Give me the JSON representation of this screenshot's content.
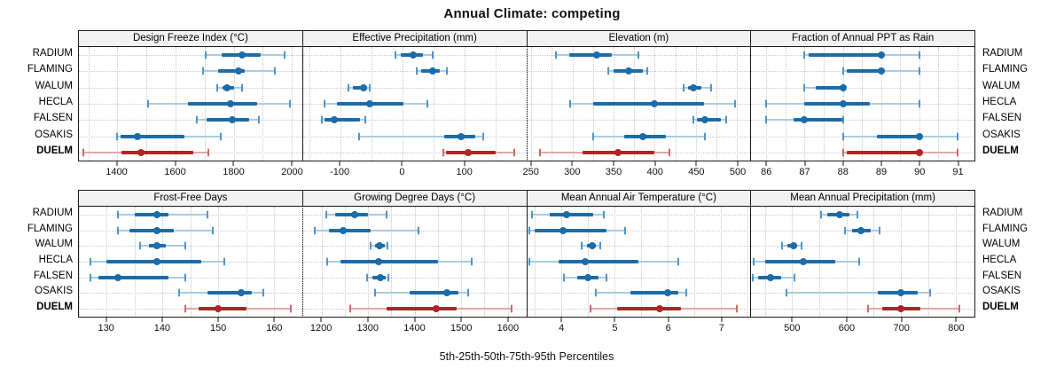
{
  "chart_data": {
    "type": "dotplot-interval",
    "title": "Annual Climate: competing",
    "caption": "5th-25th-50th-75th-95th Percentiles",
    "percentiles": [
      "5th",
      "25th",
      "50th",
      "75th",
      "95th"
    ],
    "sites_top_to_bottom": [
      "RADIUM",
      "FLAMING",
      "WALUM",
      "HECLA",
      "FALSEN",
      "OSAKIS",
      "DUELM"
    ],
    "highlight_site": "DUELM",
    "legend_position": "none",
    "grid": "dotted, major and half-step minor vertical lines, per-row horizontal lines",
    "colors": {
      "series_line": "#1B6CA8",
      "series_light": "#A9CCE3",
      "series_cap": "#5094C5",
      "highlight_line": "#B02425",
      "highlight_light": "#DFA9A9",
      "highlight_cap": "#C86A6A",
      "grid": "#C8C8C8",
      "panel_header_bg": "#F2F2F2",
      "border": "#1A1A1A"
    },
    "panels": [
      {
        "title": "Design Freeze Index (°C)",
        "row": 0,
        "col": 0,
        "xlim": [
          1268,
          2035
        ],
        "ticks": [
          1400,
          1600,
          1800,
          2000
        ],
        "series": [
          {
            "site": "RADIUM",
            "values": [
              1705,
              1757,
              1830,
              1893,
              1975
            ]
          },
          {
            "site": "FLAMING",
            "values": [
              1694,
              1745,
              1815,
              1838,
              1940
            ]
          },
          {
            "site": "WALUM",
            "values": [
              1744,
              1762,
              1778,
              1800,
              1830
            ]
          },
          {
            "site": "HECLA",
            "values": [
              1505,
              1643,
              1790,
              1880,
              1993
            ]
          },
          {
            "site": "FALSEN",
            "values": [
              1672,
              1706,
              1795,
              1853,
              1886
            ]
          },
          {
            "site": "OSAKIS",
            "values": [
              1400,
              1410,
              1470,
              1630,
              1755
            ]
          },
          {
            "site": "DUELM",
            "values": [
              1283,
              1415,
              1482,
              1660,
              1712
            ]
          }
        ]
      },
      {
        "title": "Effective Precipitation (mm)",
        "row": 0,
        "col": 1,
        "xlim": [
          -160,
          200
        ],
        "ticks": [
          -100,
          0,
          100
        ],
        "series": [
          {
            "site": "RADIUM",
            "values": [
              -11,
              -2,
              18,
              34,
              49
            ]
          },
          {
            "site": "FLAMING",
            "values": [
              24,
              30,
              49,
              61,
              72
            ]
          },
          {
            "site": "WALUM",
            "values": [
              -87,
              -80,
              -63,
              -57,
              -52
            ]
          },
          {
            "site": "HECLA",
            "values": [
              -126,
              -105,
              -52,
              2,
              41
            ]
          },
          {
            "site": "FALSEN",
            "values": [
              -130,
              -126,
              -110,
              -68,
              -60
            ]
          },
          {
            "site": "OSAKIS",
            "values": [
              -70,
              68,
              95,
              118,
              131
            ]
          },
          {
            "site": "DUELM",
            "values": [
              66,
              70,
              107,
              150,
              180
            ]
          }
        ]
      },
      {
        "title": "Elevation (m)",
        "row": 0,
        "col": 2,
        "xlim": [
          245,
          516
        ],
        "ticks": [
          250,
          300,
          350,
          400,
          450,
          500
        ],
        "series": [
          {
            "site": "RADIUM",
            "values": [
              280,
              296,
              330,
              348,
              380
            ]
          },
          {
            "site": "FLAMING",
            "values": [
              343,
              350,
              368,
              385,
              391
            ]
          },
          {
            "site": "WALUM",
            "values": [
              435,
              440,
              447,
              456,
              468
            ]
          },
          {
            "site": "HECLA",
            "values": [
              297,
              325,
              400,
              460,
              497
            ]
          },
          {
            "site": "FALSEN",
            "values": [
              447,
              451,
              461,
              480,
              487
            ]
          },
          {
            "site": "OSAKIS",
            "values": [
              325,
              363,
              385,
              413,
              461
            ]
          },
          {
            "site": "DUELM",
            "values": [
              261,
              312,
              355,
              400,
              418
            ]
          }
        ]
      },
      {
        "title": "Fraction of Annual PPT as Rain",
        "row": 0,
        "col": 3,
        "xlim": [
          85.6,
          91.45
        ],
        "ticks": [
          86,
          87,
          88,
          89,
          90,
          91
        ],
        "series": [
          {
            "site": "RADIUM",
            "values": [
              87,
              87.1,
              89,
              89,
              90
            ]
          },
          {
            "site": "FLAMING",
            "values": [
              88,
              88.1,
              89,
              89,
              90
            ]
          },
          {
            "site": "WALUM",
            "values": [
              87,
              87.3,
              88,
              88,
              88
            ]
          },
          {
            "site": "HECLA",
            "values": [
              86,
              87,
              88,
              88.7,
              90
            ]
          },
          {
            "site": "FALSEN",
            "values": [
              86,
              86.7,
              87,
              88,
              88
            ]
          },
          {
            "site": "OSAKIS",
            "values": [
              88,
              88.9,
              90,
              90,
              91
            ]
          },
          {
            "site": "DUELM",
            "values": [
              88,
              88.1,
              90,
              90,
              91
            ]
          }
        ]
      },
      {
        "title": "Frost-Free Days",
        "row": 1,
        "col": 0,
        "xlim": [
          125,
          165
        ],
        "ticks": [
          130,
          140,
          150,
          160
        ],
        "series": [
          {
            "site": "RADIUM",
            "values": [
              132,
              135,
              139,
              141,
              148
            ]
          },
          {
            "site": "FLAMING",
            "values": [
              132,
              134,
              139,
              142,
              149
            ]
          },
          {
            "site": "WALUM",
            "values": [
              136,
              137.5,
              139,
              140.5,
              144
            ]
          },
          {
            "site": "HECLA",
            "values": [
              127,
              130,
              139,
              147,
              151
            ]
          },
          {
            "site": "FALSEN",
            "values": [
              127,
              128.5,
              132,
              141,
              144
            ]
          },
          {
            "site": "OSAKIS",
            "values": [
              143,
              148,
              154,
              156,
              158
            ]
          },
          {
            "site": "DUELM",
            "values": [
              144,
              146.5,
              150,
              155,
              163
            ]
          }
        ]
      },
      {
        "title": "Growing Degree Days (°C)",
        "row": 1,
        "col": 1,
        "xlim": [
          1160,
          1640
        ],
        "ticks": [
          1200,
          1300,
          1400,
          1500,
          1600
        ],
        "series": [
          {
            "site": "RADIUM",
            "values": [
              1210,
              1230,
              1272,
              1300,
              1340
            ]
          },
          {
            "site": "FLAMING",
            "values": [
              1185,
              1215,
              1247,
              1305,
              1408
            ]
          },
          {
            "site": "WALUM",
            "values": [
              1305,
              1315,
              1325,
              1335,
              1341
            ]
          },
          {
            "site": "HECLA",
            "values": [
              1212,
              1240,
              1322,
              1450,
              1522
            ]
          },
          {
            "site": "FALSEN",
            "values": [
              1298,
              1310,
              1326,
              1337,
              1343
            ]
          },
          {
            "site": "OSAKIS",
            "values": [
              1315,
              1390,
              1470,
              1495,
              1515
            ]
          },
          {
            "site": "DUELM",
            "values": [
              1262,
              1340,
              1447,
              1490,
              1608
            ]
          }
        ]
      },
      {
        "title": "Mean Annual Air Temperature (°C)",
        "row": 1,
        "col": 2,
        "xlim": [
          3.35,
          7.55
        ],
        "ticks": [
          4,
          5,
          6,
          7
        ],
        "series": [
          {
            "site": "RADIUM",
            "values": [
              3.45,
              3.78,
              4.1,
              4.6,
              4.8
            ]
          },
          {
            "site": "FLAMING",
            "values": [
              3.4,
              3.5,
              4.02,
              4.85,
              5.2
            ]
          },
          {
            "site": "WALUM",
            "values": [
              4.38,
              4.48,
              4.58,
              4.65,
              4.72
            ]
          },
          {
            "site": "HECLA",
            "values": [
              3.4,
              3.95,
              4.45,
              5.45,
              6.2
            ]
          },
          {
            "site": "FALSEN",
            "values": [
              4.05,
              4.3,
              4.5,
              4.7,
              4.85
            ]
          },
          {
            "site": "OSAKIS",
            "values": [
              4.65,
              5.3,
              6.0,
              6.2,
              6.35
            ]
          },
          {
            "site": "DUELM",
            "values": [
              4.55,
              5.05,
              5.85,
              6.25,
              7.3
            ]
          }
        ]
      },
      {
        "title": "Mean Annual Precipitation (mm)",
        "row": 1,
        "col": 3,
        "xlim": [
          425,
          835
        ],
        "ticks": [
          500,
          600,
          700,
          800
        ],
        "series": [
          {
            "site": "RADIUM",
            "values": [
              553,
              565,
              587,
              605,
              620
            ]
          },
          {
            "site": "FLAMING",
            "values": [
              597,
              610,
              627,
              645,
              660
            ]
          },
          {
            "site": "WALUM",
            "values": [
              482,
              492,
              503,
              510,
              518
            ]
          },
          {
            "site": "HECLA",
            "values": [
              430,
              450,
              520,
              580,
              623
            ]
          },
          {
            "site": "FALSEN",
            "values": [
              428,
              438,
              460,
              480,
              505
            ]
          },
          {
            "site": "OSAKIS",
            "values": [
              490,
              658,
              700,
              730,
              753
            ]
          },
          {
            "site": "DUELM",
            "values": [
              640,
              665,
              700,
              735,
              808
            ]
          }
        ]
      }
    ]
  }
}
